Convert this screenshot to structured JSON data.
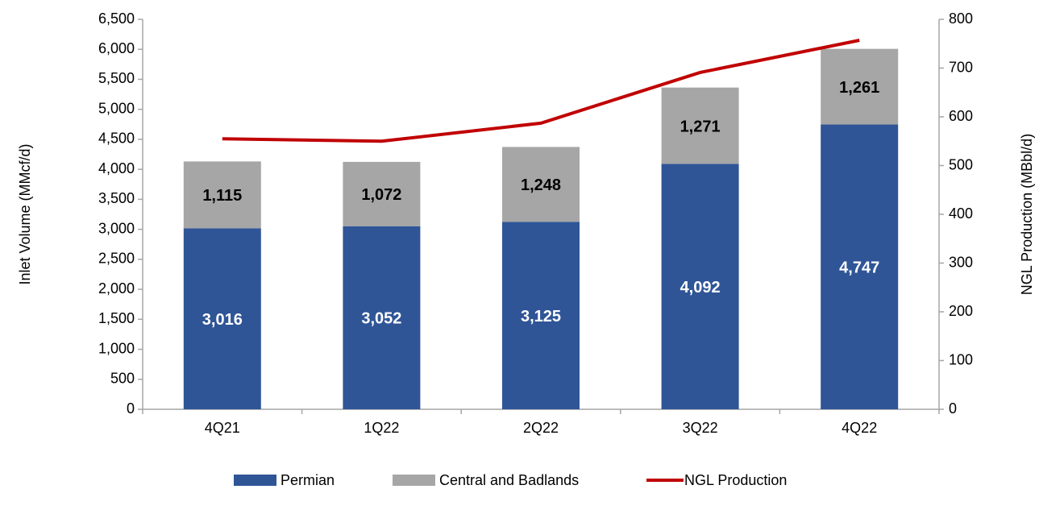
{
  "chart_data": {
    "type": "stacked-bar-line",
    "categories": [
      "4Q21",
      "1Q22",
      "2Q22",
      "3Q22",
      "4Q22"
    ],
    "series": [
      {
        "name": "Permian",
        "color": "#2f5597",
        "type": "bar",
        "values": [
          3016,
          3052,
          3125,
          4092,
          4747
        ],
        "value_labels": [
          "3,016",
          "3,052",
          "3,125",
          "4,092",
          "4,747"
        ]
      },
      {
        "name": "Central and Badlands",
        "color": "#a6a6a6",
        "type": "bar",
        "values": [
          1115,
          1072,
          1248,
          1271,
          1261
        ],
        "value_labels": [
          "1,115",
          "1,072",
          "1,248",
          "1,271",
          "1,261"
        ]
      },
      {
        "name": "NGL Production",
        "color": "#c00000",
        "type": "line",
        "axis": "y2",
        "values": [
          555,
          550,
          587,
          691,
          757
        ]
      }
    ],
    "y_label": "Inlet Volume (MMcf/d)",
    "y2_label": "NGL Production (MBbl/d)",
    "ylim": [
      0,
      6500
    ],
    "yticks": [
      0,
      500,
      {
        "value": 1000,
        "label": "1,000"
      },
      {
        "value": 1500,
        "label": "1,500"
      },
      {
        "value": 2000,
        "label": "2,000"
      },
      {
        "value": 2500,
        "label": "2,500"
      },
      {
        "value": 3000,
        "label": "3,000"
      },
      {
        "value": 3500,
        "label": "3,500"
      },
      {
        "value": 4000,
        "label": "4,000"
      },
      {
        "value": 4500,
        "label": "4,500"
      },
      {
        "value": 5000,
        "label": "5,000"
      },
      {
        "value": 5500,
        "label": "5,500"
      },
      {
        "value": 6000,
        "label": "6,000"
      },
      {
        "value": 6500,
        "label": "6,500"
      }
    ],
    "y2lim": [
      0,
      800
    ],
    "y2ticks": [
      0,
      100,
      200,
      300,
      400,
      500,
      600,
      700,
      800
    ],
    "legend": "bottom",
    "grid": false
  }
}
